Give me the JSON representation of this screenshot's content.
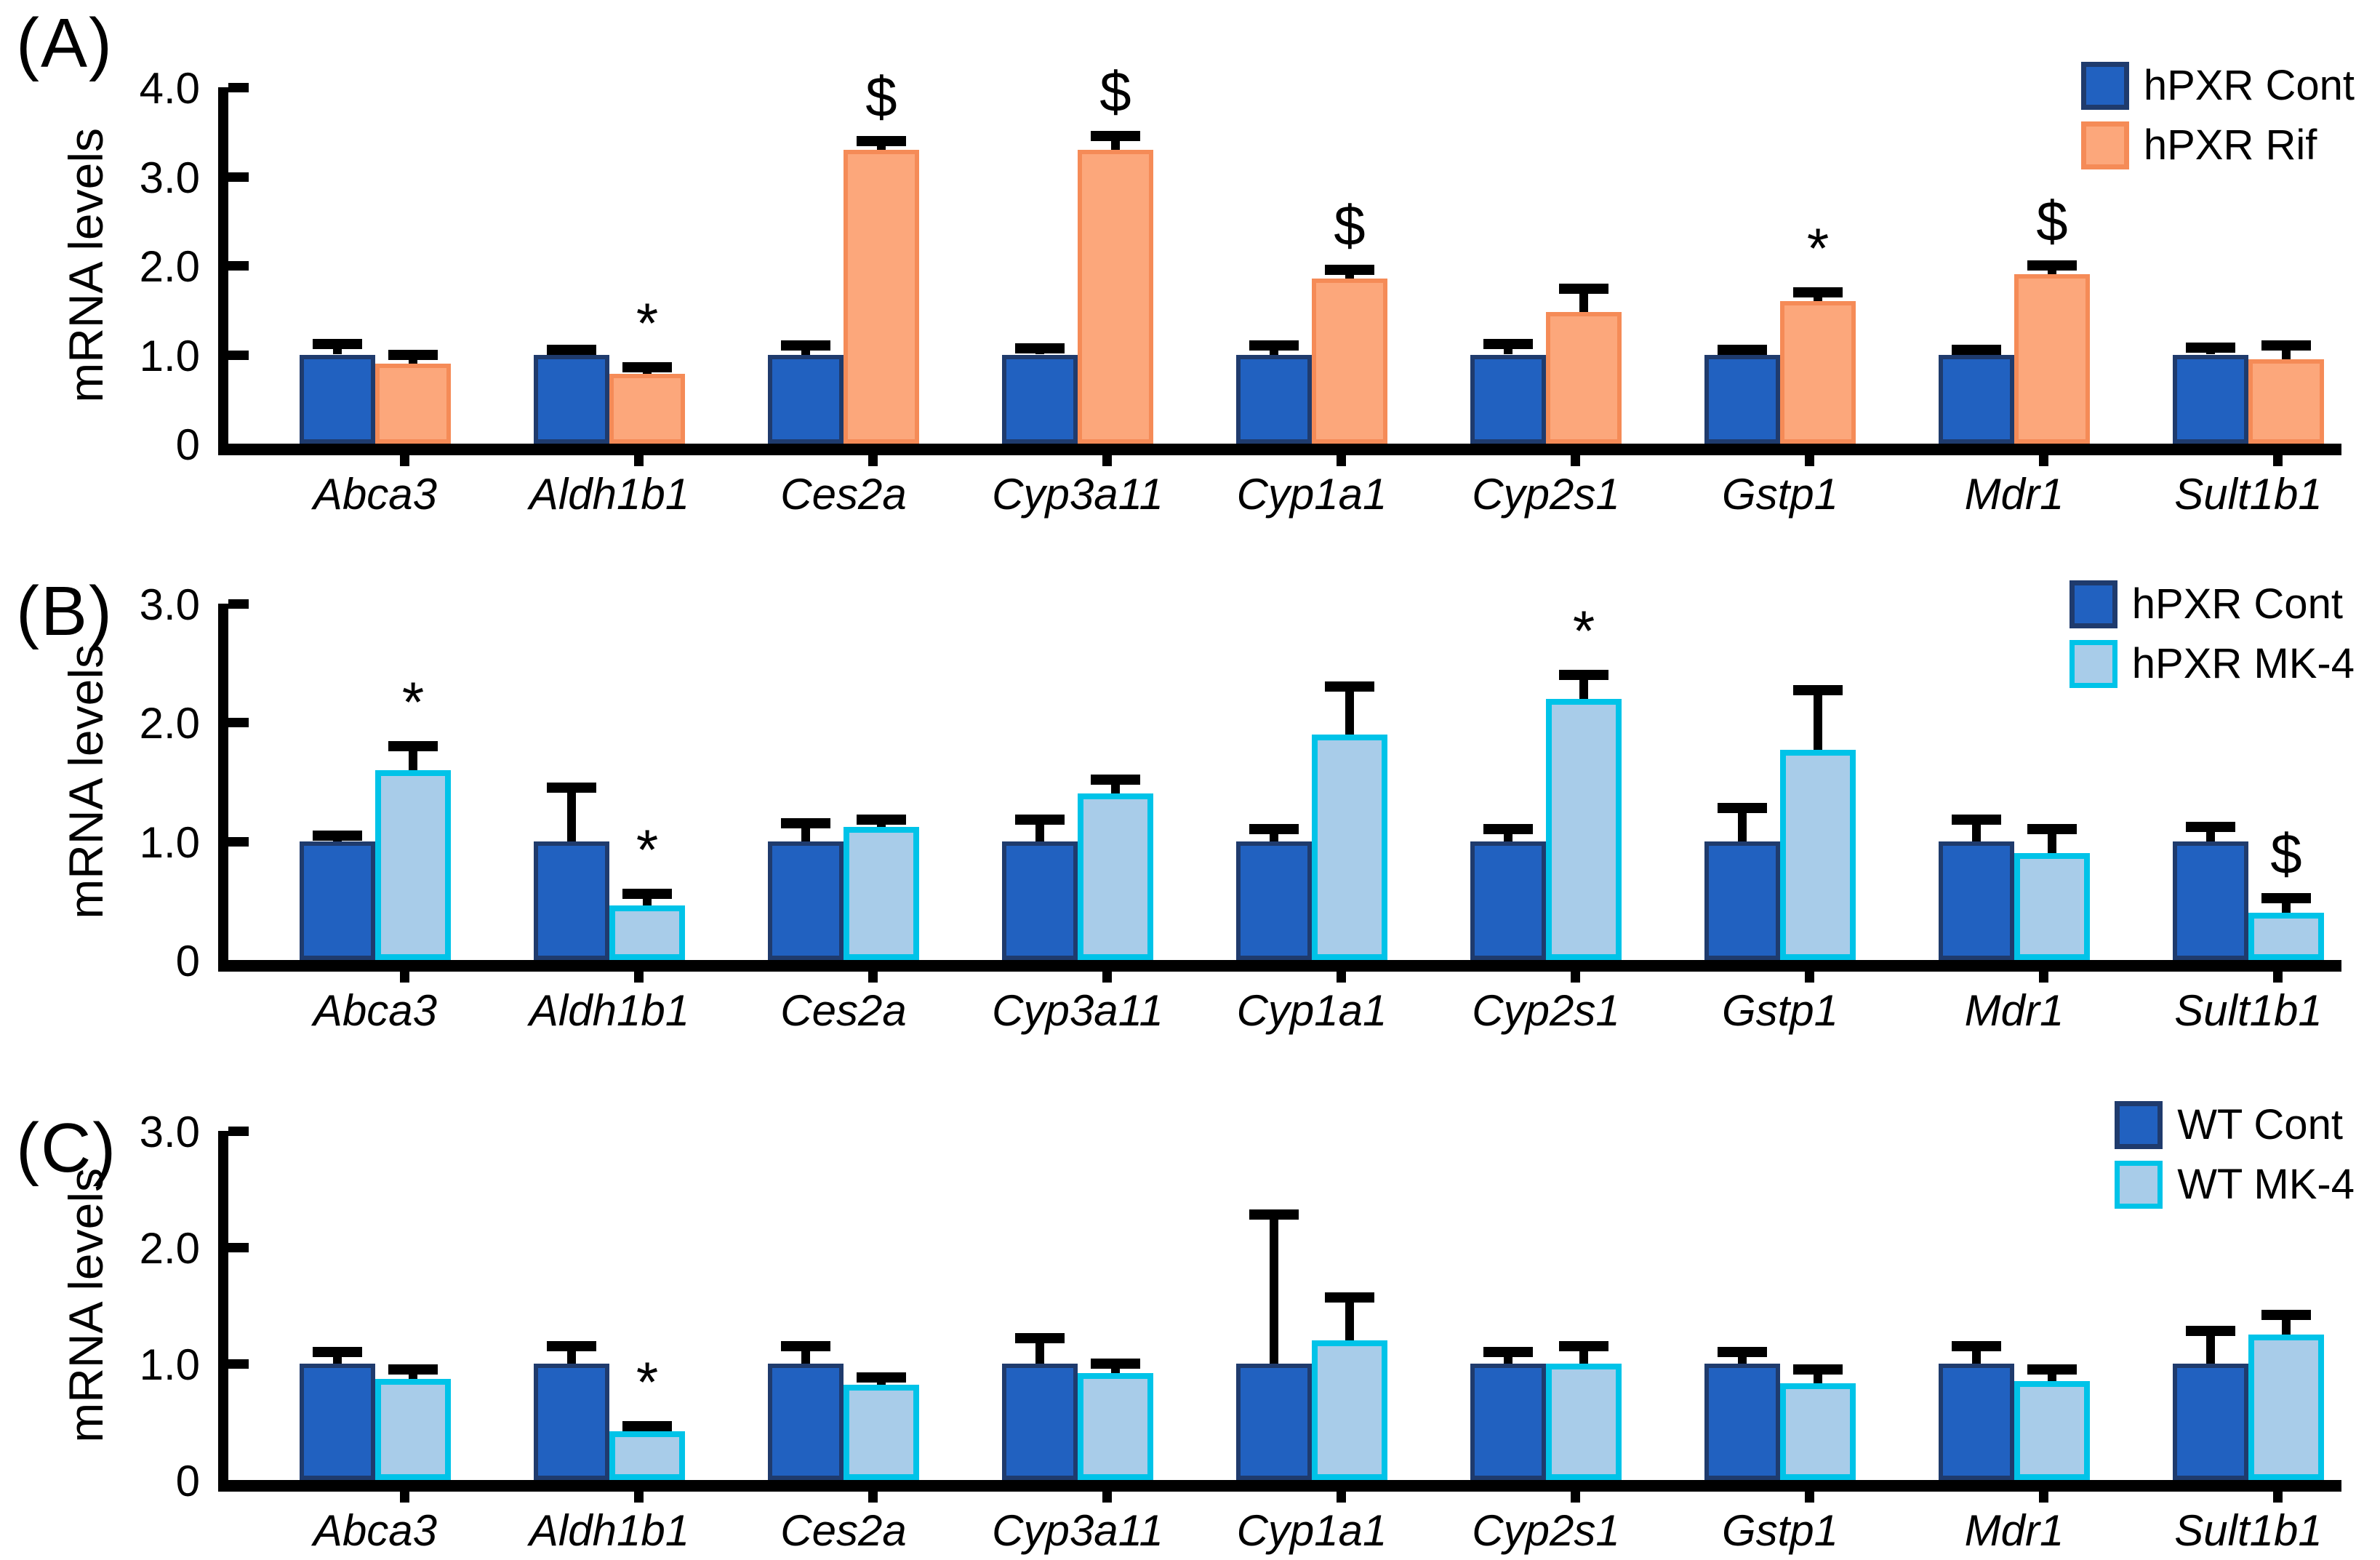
{
  "figure": {
    "background": "#ffffff",
    "ylabel": "mRNA levels"
  },
  "colors": {
    "cont_fill": "#2161C0",
    "cont_border": "#1F3B6D",
    "rif_fill": "#FCA77B",
    "rif_border": "#F58B57",
    "mk4_fill": "#A8CCE9",
    "mk4_border": "#00C3E8",
    "axis": "#000000",
    "error_bar": "#000000",
    "text": "#000000"
  },
  "chart_data": [
    {
      "type": "bar",
      "panel_label": "(A)",
      "ylabel": "mRNA levels",
      "ymax": 4.0,
      "ylim": [
        0,
        4.0
      ],
      "grid": false,
      "legend_position": "top-right",
      "yticks": [
        {
          "value": 4.0,
          "label": "4.0"
        },
        {
          "value": 3.0,
          "label": "3.0"
        },
        {
          "value": 2.0,
          "label": "2.0"
        },
        {
          "value": 1.0,
          "label": "1.0"
        },
        {
          "value": 0,
          "label": "0"
        }
      ],
      "categories": [
        "Abca3",
        "Aldh1b1",
        "Ces2a",
        "Cyp3a11",
        "Cyp1a1",
        "Cyp2s1",
        "Gstp1",
        "Mdr1",
        "Sult1b1"
      ],
      "series": [
        {
          "name": "hPXR Cont",
          "style": "cont",
          "values": [
            1.0,
            1.0,
            1.0,
            1.0,
            1.0,
            1.0,
            1.0,
            1.0,
            1.0
          ],
          "errors_plus": [
            0.12,
            0.05,
            0.1,
            0.07,
            0.1,
            0.12,
            0.05,
            0.05,
            0.08
          ],
          "symbols": [
            "",
            "",
            "",
            "",
            "",
            "",
            "",
            "",
            ""
          ]
        },
        {
          "name": "hPXR Rif",
          "style": "rif",
          "values": [
            0.9,
            0.78,
            3.3,
            3.3,
            1.85,
            1.48,
            1.6,
            1.9,
            0.95
          ],
          "errors_plus": [
            0.1,
            0.08,
            0.1,
            0.15,
            0.1,
            0.26,
            0.1,
            0.1,
            0.15
          ],
          "symbols": [
            "",
            "*",
            "$",
            "$",
            "$",
            "",
            "*",
            "$",
            ""
          ]
        }
      ]
    },
    {
      "type": "bar",
      "panel_label": "(B)",
      "ylabel": "mRNA levels",
      "ymax": 3.0,
      "ylim": [
        0,
        3.0
      ],
      "grid": false,
      "legend_position": "top-right",
      "yticks": [
        {
          "value": 3.0,
          "label": "3.0"
        },
        {
          "value": 2.0,
          "label": "2.0"
        },
        {
          "value": 1.0,
          "label": "1.0"
        },
        {
          "value": 0,
          "label": "0"
        }
      ],
      "categories": [
        "Abca3",
        "Aldh1b1",
        "Ces2a",
        "Cyp3a11",
        "Cyp1a1",
        "Cyp2s1",
        "Gstp1",
        "Mdr1",
        "Sult1b1"
      ],
      "series": [
        {
          "name": "hPXR Cont",
          "style": "cont",
          "values": [
            1.0,
            1.0,
            1.0,
            1.0,
            1.0,
            1.0,
            1.0,
            1.0,
            1.0
          ],
          "errors_plus": [
            0.05,
            0.45,
            0.15,
            0.18,
            0.1,
            0.1,
            0.28,
            0.18,
            0.12
          ],
          "symbols": [
            "",
            "",
            "",
            "",
            "",
            "",
            "",
            "",
            ""
          ]
        },
        {
          "name": "hPXR MK-4",
          "style": "mk4",
          "values": [
            1.6,
            0.46,
            1.12,
            1.4,
            1.9,
            2.2,
            1.77,
            0.9,
            0.4
          ],
          "errors_plus": [
            0.2,
            0.1,
            0.06,
            0.12,
            0.4,
            0.2,
            0.5,
            0.2,
            0.12
          ],
          "symbols": [
            "*",
            "*",
            "",
            "",
            "",
            "*",
            "",
            "",
            "$"
          ]
        }
      ]
    },
    {
      "type": "bar",
      "panel_label": "(C)",
      "ylabel": "mRNA levels",
      "ymax": 3.0,
      "ylim": [
        0,
        3.0
      ],
      "grid": false,
      "legend_position": "top-right",
      "yticks": [
        {
          "value": 3.0,
          "label": "3.0"
        },
        {
          "value": 2.0,
          "label": "2.0"
        },
        {
          "value": 1.0,
          "label": "1.0"
        },
        {
          "value": 0,
          "label": "0"
        }
      ],
      "categories": [
        "Abca3",
        "Aldh1b1",
        "Ces2a",
        "Cyp3a11",
        "Cyp1a1",
        "Cyp2s1",
        "Gstp1",
        "Mdr1",
        "Sult1b1"
      ],
      "series": [
        {
          "name": "WT Cont",
          "style": "cont",
          "values": [
            1.0,
            1.0,
            1.0,
            1.0,
            1.0,
            1.0,
            1.0,
            1.0,
            1.0
          ],
          "errors_plus": [
            0.1,
            0.15,
            0.15,
            0.22,
            1.28,
            0.1,
            0.1,
            0.15,
            0.28
          ],
          "symbols": [
            "",
            "",
            "",
            "",
            "",
            "",
            "",
            "",
            ""
          ]
        },
        {
          "name": "WT MK-4",
          "style": "mk4",
          "values": [
            0.87,
            0.42,
            0.82,
            0.92,
            1.2,
            1.0,
            0.83,
            0.85,
            1.25
          ],
          "errors_plus": [
            0.08,
            0.04,
            0.06,
            0.08,
            0.37,
            0.15,
            0.12,
            0.1,
            0.17
          ],
          "symbols": [
            "",
            "*",
            "",
            "",
            "",
            "",
            "",
            "",
            ""
          ]
        }
      ]
    }
  ]
}
